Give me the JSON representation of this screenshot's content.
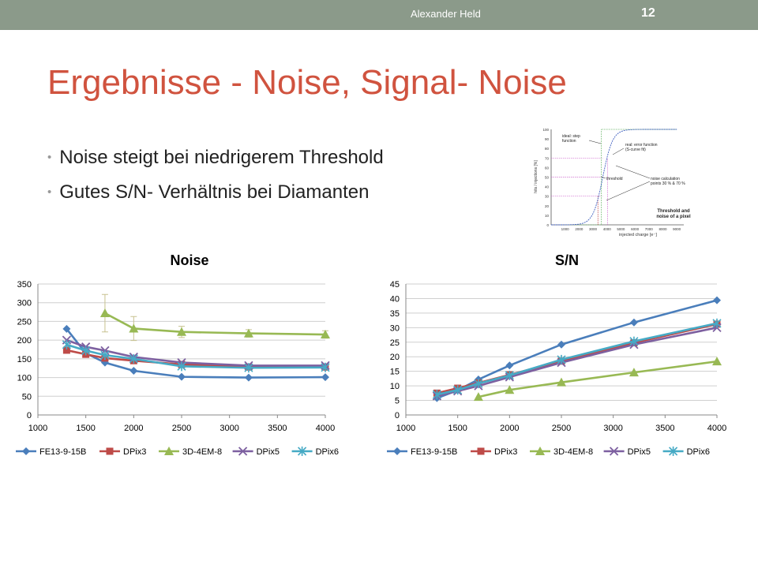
{
  "header": {
    "author": "Alexander Held",
    "page": "12"
  },
  "title": "Ergebnisse - Noise, Signal- Noise",
  "bullets": [
    "Noise steigt bei niedrigerem Threshold",
    "Gutes S/N- Verhältnis bei Diamanten"
  ],
  "colors": {
    "title": "#d0533f",
    "topbar": "#8b9a8a"
  },
  "inset": {
    "ylabel": "hits / injections [%]",
    "xlabel": "injected charge [e⁻]",
    "yticks": [
      0,
      10,
      20,
      30,
      40,
      50,
      60,
      70,
      80,
      90,
      100
    ],
    "xticks": [
      1000,
      2000,
      3000,
      4000,
      5000,
      6000,
      7000,
      8000,
      9000
    ],
    "ann_ideal": [
      "ideal: step",
      "function"
    ],
    "ann_real": [
      "real: error function",
      "(S-curve fit)"
    ],
    "ann_threshold": "threshold",
    "ann_noise": [
      "noise calculation",
      "points 30 % & 70 %"
    ],
    "caption": [
      "Threshold and",
      "noise of a pixel"
    ]
  },
  "chart_data": [
    {
      "type": "line",
      "title": "Noise",
      "xlim": [
        1000,
        4000
      ],
      "ylim": [
        0,
        350
      ],
      "xticks": [
        1000,
        1500,
        2000,
        2500,
        3000,
        3500,
        4000
      ],
      "yticks": [
        0,
        50,
        100,
        150,
        200,
        250,
        300,
        350
      ],
      "grid": true,
      "legend": "bottom",
      "series": [
        {
          "name": "FE13-9-15B",
          "color": "#4a7ebb",
          "marker": "diamond",
          "x": [
            1300,
            1500,
            1700,
            2000,
            2500,
            3200,
            4000
          ],
          "y": [
            230,
            165,
            140,
            118,
            102,
            100,
            101
          ]
        },
        {
          "name": "DPix3",
          "color": "#be4b48",
          "marker": "square",
          "x": [
            1300,
            1500,
            1700,
            2000,
            2500,
            3200,
            4000
          ],
          "y": [
            173,
            162,
            152,
            145,
            135,
            128,
            128
          ]
        },
        {
          "name": "3D-4EM-8",
          "color": "#98b954",
          "marker": "triangle",
          "x": [
            1700,
            2000,
            2500,
            3200,
            4000
          ],
          "y": [
            272,
            231,
            222,
            218,
            215
          ],
          "yerr": [
            50,
            32,
            15,
            10,
            10
          ]
        },
        {
          "name": "DPix5",
          "color": "#7d60a0",
          "marker": "x",
          "x": [
            1300,
            1500,
            1700,
            2000,
            2500,
            3200,
            4000
          ],
          "y": [
            200,
            182,
            172,
            155,
            140,
            132,
            132
          ]
        },
        {
          "name": "DPix6",
          "color": "#46aac5",
          "marker": "star",
          "x": [
            1300,
            1500,
            1700,
            2000,
            2500,
            3200,
            4000
          ],
          "y": [
            188,
            172,
            160,
            150,
            130,
            126,
            127
          ]
        }
      ]
    },
    {
      "type": "line",
      "title": "S/N",
      "xlim": [
        1000,
        4000
      ],
      "ylim": [
        0,
        45
      ],
      "xticks": [
        1000,
        1500,
        2000,
        2500,
        3000,
        3500,
        4000
      ],
      "yticks": [
        0,
        5,
        10,
        15,
        20,
        25,
        30,
        35,
        40,
        45
      ],
      "grid": true,
      "legend": "bottom",
      "series": [
        {
          "name": "FE13-9-15B",
          "color": "#4a7ebb",
          "marker": "diamond",
          "x": [
            1300,
            1500,
            1700,
            2000,
            2500,
            3200,
            4000
          ],
          "y": [
            5.8,
            8.5,
            12.2,
            17,
            24.2,
            31.8,
            39.4
          ]
        },
        {
          "name": "DPix3",
          "color": "#be4b48",
          "marker": "square",
          "x": [
            1300,
            1500,
            1700,
            2000,
            2500,
            3200,
            4000
          ],
          "y": [
            7.5,
            9.2,
            11,
            13.8,
            18.5,
            24.8,
            31.2
          ]
        },
        {
          "name": "3D-4EM-8",
          "color": "#98b954",
          "marker": "triangle",
          "x": [
            1700,
            2000,
            2500,
            3200,
            4000
          ],
          "y": [
            6.2,
            8.6,
            11.2,
            14.6,
            18.4
          ]
        },
        {
          "name": "DPix5",
          "color": "#7d60a0",
          "marker": "x",
          "x": [
            1300,
            1500,
            1700,
            2000,
            2500,
            3200,
            4000
          ],
          "y": [
            6.5,
            8.2,
            10,
            13,
            18,
            24.2,
            30
          ]
        },
        {
          "name": "DPix6",
          "color": "#46aac5",
          "marker": "star",
          "x": [
            1300,
            1500,
            1700,
            2000,
            2500,
            3200,
            4000
          ],
          "y": [
            7,
            8.6,
            10.8,
            13.6,
            19,
            25.3,
            31.5
          ]
        }
      ]
    }
  ]
}
